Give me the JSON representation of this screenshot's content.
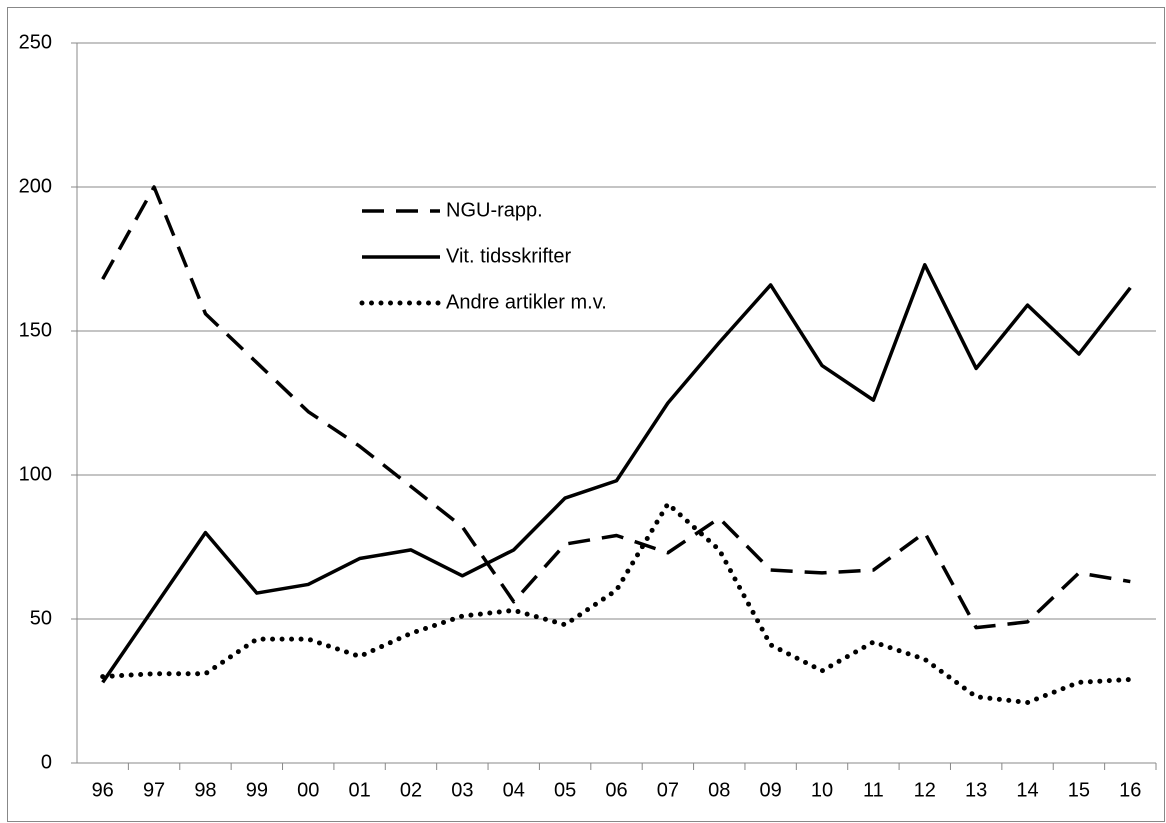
{
  "chart_data": {
    "type": "line",
    "categories": [
      "96",
      "97",
      "98",
      "99",
      "00",
      "01",
      "02",
      "03",
      "04",
      "05",
      "06",
      "07",
      "08",
      "09",
      "10",
      "11",
      "12",
      "13",
      "14",
      "15",
      "16"
    ],
    "series": [
      {
        "name": "NGU-rapp.",
        "color": "#000000",
        "dash": "dashed",
        "values": [
          168,
          200,
          156,
          139,
          122,
          110,
          96,
          82,
          56,
          76,
          79,
          73,
          85,
          67,
          66,
          67,
          80,
          47,
          49,
          66,
          63
        ]
      },
      {
        "name": "Vit. tidsskrifter",
        "color": "#000000",
        "dash": "solid",
        "values": [
          28,
          54,
          80,
          59,
          62,
          71,
          74,
          65,
          74,
          92,
          98,
          125,
          146,
          166,
          138,
          126,
          173,
          137,
          159,
          142,
          165
        ]
      },
      {
        "name": "Andre artikler m.v.",
        "color": "#000000",
        "dash": "dotted",
        "values": [
          30,
          31,
          31,
          43,
          43,
          37,
          45,
          51,
          53,
          48,
          60,
          90,
          74,
          41,
          32,
          42,
          36,
          23,
          21,
          28,
          29
        ]
      }
    ],
    "ylim": [
      0,
      250
    ],
    "yticks": [
      0,
      50,
      100,
      150,
      200,
      250
    ],
    "grid": true
  }
}
